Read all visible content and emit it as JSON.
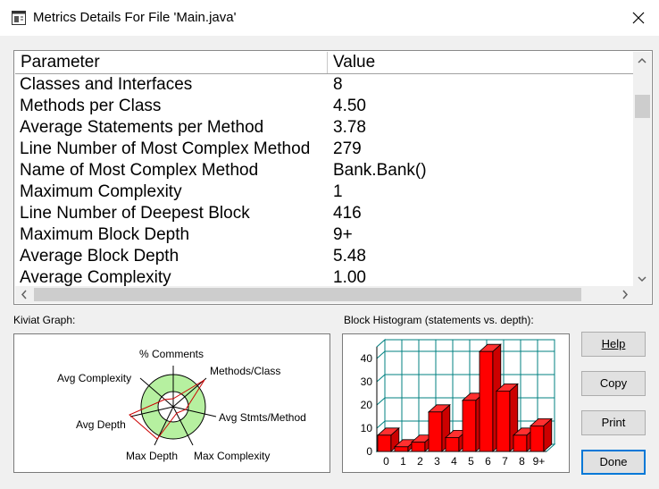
{
  "window": {
    "title": "Metrics Details For File 'Main.java'"
  },
  "table": {
    "columns": [
      "Parameter",
      "Value"
    ],
    "rows": [
      {
        "param": "Classes and Interfaces",
        "value": "8"
      },
      {
        "param": "Methods per Class",
        "value": "4.50"
      },
      {
        "param": "Average Statements per Method",
        "value": "3.78"
      },
      {
        "param": "Line Number of Most Complex Method",
        "value": "279"
      },
      {
        "param": "Name of Most Complex Method",
        "value": "Bank.Bank()"
      },
      {
        "param": "Maximum Complexity",
        "value": "1"
      },
      {
        "param": "Line Number of Deepest Block",
        "value": "416"
      },
      {
        "param": "Maximum Block Depth",
        "value": "9+"
      },
      {
        "param": "Average Block Depth",
        "value": "5.48"
      },
      {
        "param": "Average Complexity",
        "value": "1.00"
      }
    ]
  },
  "kiviat": {
    "label": "Kiviat Graph:",
    "axes": [
      "% Comments",
      "Methods/Class",
      "Avg Stmts/Method",
      "Max Complexity",
      "Max Depth",
      "Avg Depth",
      "Avg Complexity"
    ]
  },
  "histogram": {
    "label": "Block Histogram (statements vs. depth):"
  },
  "chart_data": {
    "type": "bar",
    "categories": [
      "0",
      "1",
      "2",
      "3",
      "4",
      "5",
      "6",
      "7",
      "8",
      "9+"
    ],
    "values": [
      7,
      2,
      4,
      17,
      6,
      22,
      43,
      26,
      7,
      11
    ],
    "ylim": [
      0,
      45
    ],
    "yticks": [
      0,
      10,
      20,
      30,
      40
    ],
    "grid": true,
    "bar_color": "#ff0000",
    "grid_color": "#008080"
  },
  "buttons": {
    "help": "Help",
    "copy": "Copy",
    "print": "Print",
    "done": "Done"
  },
  "colors": {
    "kiviat_ring": "#b6f0a0",
    "focus": "#0078d7"
  }
}
